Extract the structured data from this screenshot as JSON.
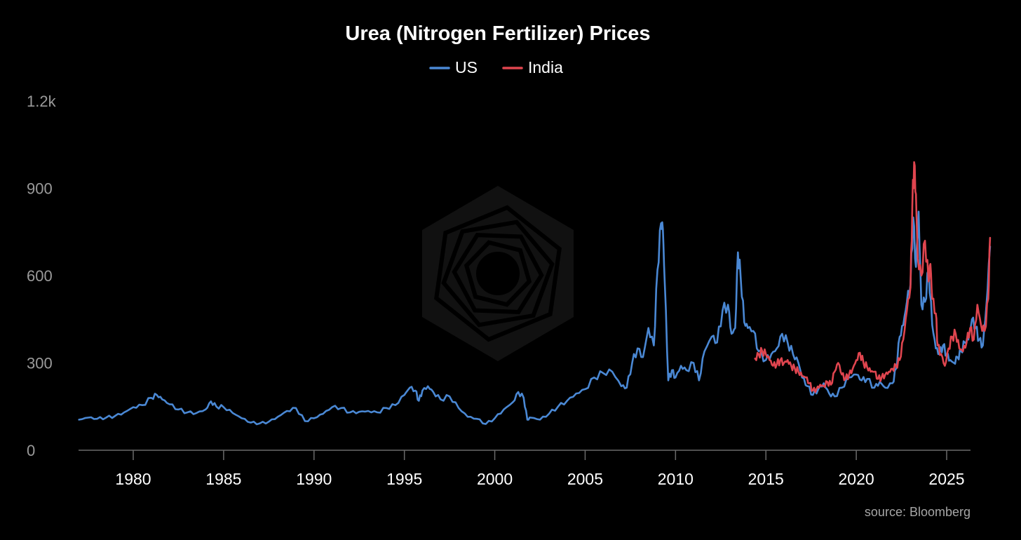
{
  "chart_data": {
    "type": "line",
    "title": "Urea (Nitrogen Fertilizer) Prices",
    "xlabel": "",
    "ylabel": "",
    "xlim": [
      1977,
      2026.4
    ],
    "ylim": [
      0,
      1200
    ],
    "yticks": [
      {
        "v": 0,
        "label": "0"
      },
      {
        "v": 300,
        "label": "300"
      },
      {
        "v": 600,
        "label": "600"
      },
      {
        "v": 900,
        "label": "900"
      },
      {
        "v": 1200,
        "label": "1.2k"
      }
    ],
    "xticks": [
      {
        "v": 1980,
        "label": "1980"
      },
      {
        "v": 1985,
        "label": "1985"
      },
      {
        "v": 1990,
        "label": "1990"
      },
      {
        "v": 1995,
        "label": "1995"
      },
      {
        "v": 2000,
        "label": "2000"
      },
      {
        "v": 2005,
        "label": "2005"
      },
      {
        "v": 2010,
        "label": "2010"
      },
      {
        "v": 2015,
        "label": "2015"
      },
      {
        "v": 2020,
        "label": "2020"
      },
      {
        "v": 2025,
        "label": "2025"
      }
    ],
    "legend_position": "top-center",
    "source": "source: Bloomberg",
    "series": [
      {
        "name": "US",
        "color": "#4a88d4",
        "points": [
          [
            1977.0,
            105
          ],
          [
            1977.5,
            112
          ],
          [
            1978.0,
            108
          ],
          [
            1978.5,
            112
          ],
          [
            1979.0,
            118
          ],
          [
            1979.5,
            130
          ],
          [
            1980.0,
            148
          ],
          [
            1980.5,
            155
          ],
          [
            1981.0,
            180
          ],
          [
            1981.3,
            190
          ],
          [
            1981.6,
            175
          ],
          [
            1982.0,
            158
          ],
          [
            1982.5,
            140
          ],
          [
            1983.0,
            130
          ],
          [
            1983.5,
            128
          ],
          [
            1984.0,
            140
          ],
          [
            1984.3,
            168
          ],
          [
            1984.6,
            150
          ],
          [
            1985.0,
            148
          ],
          [
            1985.5,
            128
          ],
          [
            1986.0,
            110
          ],
          [
            1986.5,
            95
          ],
          [
            1987.0,
            92
          ],
          [
            1987.5,
            98
          ],
          [
            1988.0,
            115
          ],
          [
            1988.5,
            135
          ],
          [
            1989.0,
            145
          ],
          [
            1989.5,
            100
          ],
          [
            1990.0,
            110
          ],
          [
            1990.5,
            125
          ],
          [
            1991.0,
            148
          ],
          [
            1991.5,
            145
          ],
          [
            1992.0,
            130
          ],
          [
            1992.5,
            132
          ],
          [
            1993.0,
            135
          ],
          [
            1993.5,
            130
          ],
          [
            1994.0,
            145
          ],
          [
            1994.5,
            155
          ],
          [
            1995.0,
            190
          ],
          [
            1995.3,
            215
          ],
          [
            1995.6,
            205
          ],
          [
            1995.8,
            170
          ],
          [
            1996.0,
            205
          ],
          [
            1996.3,
            220
          ],
          [
            1996.6,
            200
          ],
          [
            1997.0,
            175
          ],
          [
            1997.5,
            185
          ],
          [
            1998.0,
            145
          ],
          [
            1998.5,
            115
          ],
          [
            1999.0,
            108
          ],
          [
            1999.5,
            90
          ],
          [
            2000.0,
            110
          ],
          [
            2000.5,
            140
          ],
          [
            2001.0,
            165
          ],
          [
            2001.3,
            200
          ],
          [
            2001.6,
            180
          ],
          [
            2001.8,
            105
          ],
          [
            2002.0,
            112
          ],
          [
            2002.5,
            105
          ],
          [
            2003.0,
            125
          ],
          [
            2003.5,
            150
          ],
          [
            2004.0,
            170
          ],
          [
            2004.5,
            195
          ],
          [
            2005.0,
            210
          ],
          [
            2005.5,
            250
          ],
          [
            2006.0,
            265
          ],
          [
            2006.5,
            270
          ],
          [
            2007.0,
            220
          ],
          [
            2007.3,
            215
          ],
          [
            2007.6,
            300
          ],
          [
            2007.9,
            350
          ],
          [
            2008.2,
            320
          ],
          [
            2008.5,
            420
          ],
          [
            2008.8,
            360
          ],
          [
            2009.0,
            620
          ],
          [
            2009.2,
            780
          ],
          [
            2009.3,
            760
          ],
          [
            2009.4,
            580
          ],
          [
            2009.6,
            240
          ],
          [
            2009.8,
            275
          ],
          [
            2010.0,
            250
          ],
          [
            2010.3,
            290
          ],
          [
            2010.6,
            275
          ],
          [
            2011.0,
            300
          ],
          [
            2011.3,
            240
          ],
          [
            2011.6,
            340
          ],
          [
            2012.0,
            390
          ],
          [
            2012.3,
            370
          ],
          [
            2012.6,
            480
          ],
          [
            2012.9,
            500
          ],
          [
            2013.1,
            400
          ],
          [
            2013.3,
            420
          ],
          [
            2013.45,
            680
          ],
          [
            2013.6,
            600
          ],
          [
            2013.8,
            440
          ],
          [
            2014.0,
            420
          ],
          [
            2014.3,
            410
          ],
          [
            2014.6,
            340
          ],
          [
            2015.0,
            310
          ],
          [
            2015.3,
            330
          ],
          [
            2015.6,
            350
          ],
          [
            2015.9,
            400
          ],
          [
            2016.2,
            370
          ],
          [
            2016.5,
            330
          ],
          [
            2016.8,
            300
          ],
          [
            2017.0,
            250
          ],
          [
            2017.3,
            220
          ],
          [
            2017.6,
            190
          ],
          [
            2017.9,
            210
          ],
          [
            2018.2,
            230
          ],
          [
            2018.5,
            195
          ],
          [
            2018.8,
            185
          ],
          [
            2019.2,
            215
          ],
          [
            2019.6,
            250
          ],
          [
            2020.0,
            260
          ],
          [
            2020.3,
            240
          ],
          [
            2020.6,
            245
          ],
          [
            2021.0,
            215
          ],
          [
            2021.3,
            235
          ],
          [
            2021.6,
            215
          ],
          [
            2022.0,
            230
          ],
          [
            2022.2,
            280
          ],
          [
            2022.4,
            390
          ],
          [
            2022.6,
            430
          ],
          [
            2022.8,
            510
          ],
          [
            2023.0,
            570
          ],
          [
            2023.15,
            800
          ],
          [
            2023.3,
            630
          ],
          [
            2023.45,
            820
          ],
          [
            2023.6,
            500
          ],
          [
            2023.8,
            510
          ],
          [
            2024.0,
            620
          ],
          [
            2024.2,
            430
          ],
          [
            2024.4,
            350
          ],
          [
            2024.6,
            330
          ],
          [
            2024.8,
            360
          ],
          [
            2025.0,
            330
          ],
          [
            2025.2,
            310
          ],
          [
            2025.4,
            300
          ],
          [
            2025.6,
            320
          ],
          [
            2025.8,
            340
          ],
          [
            2026.0,
            370
          ],
          [
            2026.2,
            380
          ],
          [
            2026.4,
            450
          ],
          [
            2026.6,
            420
          ],
          [
            2026.8,
            380
          ],
          [
            2027.0,
            360
          ],
          [
            2027.2,
            500
          ],
          [
            2027.4,
            700
          ]
        ]
      },
      {
        "name": "India",
        "color": "#e0454f",
        "points": [
          [
            2014.4,
            315
          ],
          [
            2014.6,
            330
          ],
          [
            2014.8,
            340
          ],
          [
            2015.0,
            330
          ],
          [
            2015.2,
            310
          ],
          [
            2015.4,
            290
          ],
          [
            2015.6,
            295
          ],
          [
            2015.8,
            310
          ],
          [
            2016.0,
            300
          ],
          [
            2016.2,
            310
          ],
          [
            2016.4,
            290
          ],
          [
            2016.6,
            280
          ],
          [
            2016.8,
            270
          ],
          [
            2017.0,
            255
          ],
          [
            2017.2,
            250
          ],
          [
            2017.4,
            230
          ],
          [
            2017.6,
            205
          ],
          [
            2017.8,
            210
          ],
          [
            2018.0,
            225
          ],
          [
            2018.2,
            220
          ],
          [
            2018.4,
            235
          ],
          [
            2018.6,
            225
          ],
          [
            2018.8,
            270
          ],
          [
            2019.0,
            300
          ],
          [
            2019.2,
            260
          ],
          [
            2019.4,
            245
          ],
          [
            2019.6,
            260
          ],
          [
            2019.8,
            280
          ],
          [
            2020.0,
            310
          ],
          [
            2020.2,
            335
          ],
          [
            2020.4,
            300
          ],
          [
            2020.6,
            285
          ],
          [
            2020.8,
            270
          ],
          [
            2021.0,
            270
          ],
          [
            2021.2,
            245
          ],
          [
            2021.4,
            250
          ],
          [
            2021.6,
            260
          ],
          [
            2021.8,
            270
          ],
          [
            2022.0,
            280
          ],
          [
            2022.2,
            290
          ],
          [
            2022.4,
            310
          ],
          [
            2022.6,
            380
          ],
          [
            2022.8,
            480
          ],
          [
            2023.0,
            560
          ],
          [
            2023.1,
            840
          ],
          [
            2023.2,
            990
          ],
          [
            2023.3,
            880
          ],
          [
            2023.4,
            660
          ],
          [
            2023.6,
            600
          ],
          [
            2023.8,
            720
          ],
          [
            2024.0,
            580
          ],
          [
            2024.1,
            640
          ],
          [
            2024.2,
            520
          ],
          [
            2024.4,
            470
          ],
          [
            2024.5,
            360
          ],
          [
            2024.7,
            330
          ],
          [
            2024.9,
            290
          ],
          [
            2025.1,
            350
          ],
          [
            2025.3,
            390
          ],
          [
            2025.5,
            400
          ],
          [
            2025.7,
            350
          ],
          [
            2025.9,
            340
          ],
          [
            2026.1,
            370
          ],
          [
            2026.3,
            420
          ],
          [
            2026.5,
            380
          ],
          [
            2026.7,
            500
          ],
          [
            2026.9,
            430
          ],
          [
            2027.1,
            410
          ],
          [
            2027.3,
            520
          ],
          [
            2027.4,
            730
          ]
        ]
      }
    ]
  }
}
